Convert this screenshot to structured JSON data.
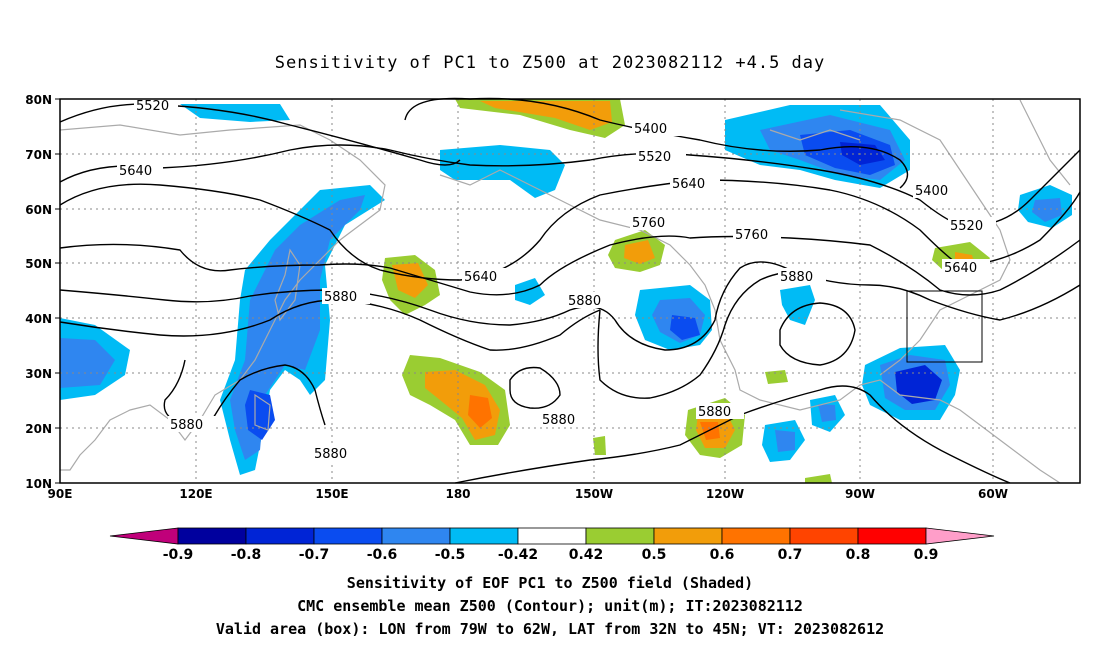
{
  "title": "Sensitivity of PC1 to Z500 at 2023082112 +4.5 day",
  "lat_labels": [
    "80N",
    "70N",
    "60N",
    "50N",
    "40N",
    "30N",
    "20N",
    "10N"
  ],
  "lon_labels": [
    "90E",
    "120E",
    "150E",
    "180",
    "150W",
    "120W",
    "90W",
    "60W"
  ],
  "contour_labels": [
    "5520",
    "5400",
    "5520",
    "5640",
    "5640",
    "5400",
    "5520",
    "5760",
    "5760",
    "5880",
    "5640",
    "5880",
    "5880",
    "5640",
    "5880",
    "5880",
    "5880",
    "5880"
  ],
  "colorbar": {
    "ticks": [
      "-0.9",
      "-0.8",
      "-0.7",
      "-0.6",
      "-0.5",
      "-0.42",
      "0.42",
      "0.5",
      "0.6",
      "0.7",
      "0.8",
      "0.9"
    ],
    "colors": [
      "#c0007a",
      "#00009e",
      "#0024d6",
      "#0a4cf0",
      "#2f86f0",
      "#00bbf5",
      "#ffffff",
      "#9acd32",
      "#f29d0a",
      "#ff7300",
      "#ff4400",
      "#ff0000",
      "#ff9ec9"
    ]
  },
  "captions": [
    "Sensitivity of EOF PC1 to Z500 field (Shaded)",
    "CMC ensemble mean Z500 (Contour); unit(m); IT:2023082112",
    "Valid area (box): LON from 79W to 62W, LAT from 32N to 45N; VT: 2023082612"
  ]
}
